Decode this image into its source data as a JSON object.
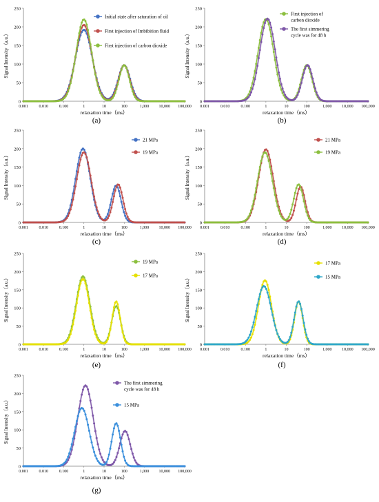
{
  "figure": {
    "panel_labels": [
      "(a)",
      "(b)",
      "(c)",
      "(d)",
      "(e)",
      "(f)",
      "(g)"
    ]
  },
  "chart_data": [
    {
      "type": "line",
      "panel": "(a)",
      "xlabel": "relaxation time（ms）",
      "ylabel": "Signal Intensity（a.u.）",
      "x_scale": "log",
      "xlim": [
        0.001,
        100000
      ],
      "ylim": [
        0,
        250
      ],
      "x_ticks": [
        "0.001",
        "0.010",
        "0.100",
        "1",
        "10",
        "100",
        "1,000",
        "10,000",
        "100,000"
      ],
      "y_ticks": [
        "0",
        "50",
        "100",
        "150",
        "200",
        "250"
      ],
      "legend": "top-right",
      "series": [
        {
          "name": "Initial state after saturation of oil",
          "color": "#4472C4",
          "peaks": [
            {
              "x": 1.0,
              "y": 192,
              "w": 0.42
            },
            {
              "x": 100,
              "y": 97,
              "w": 0.3
            }
          ]
        },
        {
          "name": "First injection of Imbibition fluid",
          "color": "#C0504D",
          "peaks": [
            {
              "x": 1.0,
              "y": 205,
              "w": 0.4
            },
            {
              "x": 100,
              "y": 97,
              "w": 0.28
            }
          ]
        },
        {
          "name": "First injection of carbon dioxide",
          "color": "#8CBF3F",
          "peaks": [
            {
              "x": 1.0,
              "y": 220,
              "w": 0.38
            },
            {
              "x": 100,
              "y": 97,
              "w": 0.26
            }
          ]
        }
      ]
    },
    {
      "type": "line",
      "panel": "(b)",
      "xlabel": "relaxation time（ms）",
      "ylabel": "Signal Intensity（a.u.）",
      "x_scale": "log",
      "xlim": [
        0.001,
        100000
      ],
      "ylim": [
        0,
        250
      ],
      "x_ticks": [
        "0.001",
        "0.010",
        "0.100",
        "1",
        "10",
        "100",
        "1,000",
        "10,000",
        "100,000"
      ],
      "y_ticks": [
        "0",
        "50",
        "100",
        "150",
        "200",
        "250"
      ],
      "legend": "top-right",
      "series": [
        {
          "name": "First injection of carbon dioxide",
          "color": "#8CBF3F",
          "peaks": [
            {
              "x": 1.0,
              "y": 221,
              "w": 0.38
            },
            {
              "x": 100,
              "y": 97,
              "w": 0.26
            }
          ]
        },
        {
          "name": "The first simmering cycle was for 48 h",
          "color": "#7E57A8",
          "peaks": [
            {
              "x": 1.2,
              "y": 222,
              "w": 0.38
            },
            {
              "x": 110,
              "y": 97,
              "w": 0.26
            }
          ]
        }
      ]
    },
    {
      "type": "line",
      "panel": "(c)",
      "xlabel": "relaxation time（ms）",
      "ylabel": "Signal Intensity（a.u.）",
      "x_scale": "log",
      "xlim": [
        0.001,
        100000
      ],
      "ylim": [
        0,
        250
      ],
      "x_ticks": [
        "0.001",
        "0.010",
        "0.100",
        "1",
        "10",
        "100",
        "1,000",
        "10,000",
        "100,000"
      ],
      "y_ticks": [
        "0",
        "50",
        "100",
        "150",
        "200",
        "250"
      ],
      "legend": "top-right",
      "series": [
        {
          "name": "21 MPa",
          "color": "#4472C4",
          "peaks": [
            {
              "x": 0.9,
              "y": 200,
              "w": 0.36
            },
            {
              "x": 40,
              "y": 100,
              "w": 0.24
            }
          ]
        },
        {
          "name": "19 MPa",
          "color": "#C0504D",
          "peaks": [
            {
              "x": 1.0,
              "y": 190,
              "w": 0.36
            },
            {
              "x": 50,
              "y": 103,
              "w": 0.24
            }
          ]
        }
      ]
    },
    {
      "type": "line",
      "panel": "(d)",
      "xlabel": "relaxation time（ms）",
      "ylabel": "Signal Intensity（a.u.）",
      "x_scale": "log",
      "xlim": [
        0.001,
        100000
      ],
      "ylim": [
        0,
        250
      ],
      "x_ticks": [
        "0.001",
        "0.010",
        "0.100",
        "1",
        "10",
        "100",
        "1,000",
        "10,000",
        "100,000"
      ],
      "y_ticks": [
        "0",
        "50",
        "100",
        "150",
        "200",
        "250"
      ],
      "legend": "top-right",
      "series": [
        {
          "name": "21 MPa",
          "color": "#C0504D",
          "peaks": [
            {
              "x": 1.0,
              "y": 198,
              "w": 0.36
            },
            {
              "x": 50,
              "y": 97,
              "w": 0.22
            }
          ]
        },
        {
          "name": "19 MPa",
          "color": "#8CBF3F",
          "peaks": [
            {
              "x": 0.9,
              "y": 190,
              "w": 0.36
            },
            {
              "x": 40,
              "y": 103,
              "w": 0.24
            }
          ]
        }
      ]
    },
    {
      "type": "line",
      "panel": "(e)",
      "xlabel": "relaxation time（ms）",
      "ylabel": "Signal Intensity（a.u.）",
      "x_scale": "log",
      "xlim": [
        0.001,
        100000
      ],
      "ylim": [
        0,
        250
      ],
      "x_ticks": [
        "0.001",
        "0.010",
        "0.100",
        "1",
        "10",
        "100",
        "1,000",
        "10,000",
        "100,000"
      ],
      "y_ticks": [
        "0",
        "50",
        "100",
        "150",
        "200",
        "250"
      ],
      "legend": "top-right",
      "series": [
        {
          "name": "19 MPa",
          "color": "#8CBF3F",
          "peaks": [
            {
              "x": 0.9,
              "y": 187,
              "w": 0.34
            },
            {
              "x": 40,
              "y": 105,
              "w": 0.22
            }
          ]
        },
        {
          "name": "17 MPa",
          "color": "#E6E000",
          "peaks": [
            {
              "x": 0.9,
              "y": 180,
              "w": 0.32
            },
            {
              "x": 40,
              "y": 118,
              "w": 0.2
            }
          ]
        }
      ]
    },
    {
      "type": "line",
      "panel": "(f)",
      "xlabel": "relaxation time（ms）",
      "ylabel": "Signal Intensity（a.u.）",
      "x_scale": "log",
      "xlim": [
        0.001,
        100000
      ],
      "ylim": [
        0,
        250
      ],
      "x_ticks": [
        "0.001",
        "0.010",
        "0.100",
        "1",
        "10",
        "100",
        "1,000",
        "10,000",
        "100,000"
      ],
      "y_ticks": [
        "0",
        "50",
        "100",
        "150",
        "200",
        "250"
      ],
      "legend": "top-right",
      "series": [
        {
          "name": "17 MPa",
          "color": "#E6E000",
          "peaks": [
            {
              "x": 0.9,
              "y": 176,
              "w": 0.32
            },
            {
              "x": 40,
              "y": 118,
              "w": 0.2
            }
          ]
        },
        {
          "name": "15 MPa",
          "color": "#2EA7C9",
          "peaks": [
            {
              "x": 0.8,
              "y": 160,
              "w": 0.36
            },
            {
              "x": 40,
              "y": 118,
              "w": 0.22
            }
          ]
        }
      ]
    },
    {
      "type": "line",
      "panel": "(g)",
      "xlabel": "relaxation time（ms）",
      "ylabel": "Signal Intensity（a.u.）",
      "x_scale": "log",
      "xlim": [
        0.001,
        100000
      ],
      "ylim": [
        0,
        250
      ],
      "x_ticks": [
        "0.001",
        "0.010",
        "0.100",
        "1",
        "10",
        "100",
        "1,000",
        "10,000",
        "100,000"
      ],
      "y_ticks": [
        "0",
        "50",
        "100",
        "150",
        "200",
        "250"
      ],
      "legend": "top-right",
      "series": [
        {
          "name": "The first simmering cycle was for 48 h",
          "color": "#7E57A8",
          "peaks": [
            {
              "x": 1.2,
              "y": 222,
              "w": 0.38
            },
            {
              "x": 110,
              "y": 97,
              "w": 0.26
            }
          ]
        },
        {
          "name": "15 MPa",
          "color": "#3A8FDC",
          "peaks": [
            {
              "x": 0.8,
              "y": 160,
              "w": 0.36
            },
            {
              "x": 40,
              "y": 118,
              "w": 0.22
            }
          ]
        }
      ]
    }
  ]
}
